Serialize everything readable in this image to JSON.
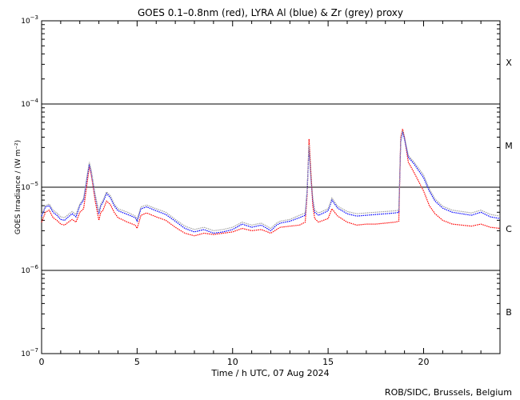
{
  "chart_data": {
    "type": "line",
    "title": "GOES 0.1–0.8nm (red), LYRA Al (blue) & Zr (grey) proxy",
    "xlabel": "Time / h UTC, 07 Aug 2024",
    "ylabel": "GOES Irradiance / (W m⁻²)",
    "xlim": [
      0,
      24
    ],
    "ylim": [
      1e-07,
      0.001
    ],
    "yscale": "log",
    "x_ticks": [
      0,
      5,
      10,
      15,
      20
    ],
    "x_tick_labels": [
      "0",
      "5",
      "10",
      "15",
      "20"
    ],
    "y_tick_labels": [
      {
        "base": "10",
        "exp": "−7"
      },
      {
        "base": "10",
        "exp": "−6"
      },
      {
        "base": "10",
        "exp": "−5"
      },
      {
        "base": "10",
        "exp": "−4"
      },
      {
        "base": "10",
        "exp": "−3"
      }
    ],
    "flare_classes": [
      "X",
      "M",
      "C",
      "B"
    ],
    "class_lines": [
      1e-06,
      1e-05,
      0.0001
    ],
    "credit": "ROB/SIDC, Brussels, Belgium",
    "series": [
      {
        "color": "#ff0000",
        "x": [
          0,
          0.2,
          0.4,
          0.6,
          0.8,
          1.0,
          1.2,
          1.4,
          1.6,
          1.8,
          2.0,
          2.2,
          2.4,
          2.5,
          2.6,
          2.7,
          2.8,
          3.0,
          3.1,
          3.2,
          3.4,
          3.6,
          3.8,
          4.0,
          4.2,
          4.5,
          4.9,
          5.0,
          5.2,
          5.5,
          6.0,
          6.5,
          7.0,
          7.5,
          8.0,
          8.5,
          9.0,
          9.5,
          10.0,
          10.5,
          11.0,
          11.5,
          12.0,
          12.3,
          12.5,
          13.0,
          13.5,
          13.8,
          13.9,
          14.0,
          14.1,
          14.2,
          14.3,
          14.5,
          15.0,
          15.2,
          15.5,
          16.0,
          16.5,
          17.0,
          17.5,
          18.0,
          18.5,
          18.7,
          18.8,
          18.9,
          19.0,
          19.2,
          19.5,
          20.0,
          20.3,
          20.6,
          21.0,
          21.5,
          22.0,
          22.5,
          23.0,
          23.5,
          24.0
        ],
        "y": [
          3.8e-06,
          5e-06,
          5.3e-06,
          4.3e-06,
          4e-06,
          3.6e-06,
          3.5e-06,
          3.8e-06,
          4.1e-06,
          3.8e-06,
          5e-06,
          5.5e-06,
          1.2e-05,
          1.8e-05,
          1.4e-05,
          1e-05,
          7e-06,
          4e-06,
          5e-06,
          5.2e-06,
          6.8e-06,
          6.2e-06,
          5e-06,
          4.3e-06,
          4.1e-06,
          3.8e-06,
          3.5e-06,
          3.2e-06,
          4.6e-06,
          4.9e-06,
          4.4e-06,
          4e-06,
          3.3e-06,
          2.8e-06,
          2.6e-06,
          2.8e-06,
          2.7e-06,
          2.8e-06,
          2.9e-06,
          3.2e-06,
          3e-06,
          3.1e-06,
          2.8e-06,
          3.1e-06,
          3.3e-06,
          3.4e-06,
          3.5e-06,
          3.8e-06,
          8e-06,
          3.8e-05,
          1.5e-05,
          6e-06,
          4.2e-06,
          3.8e-06,
          4.2e-06,
          5.5e-06,
          4.5e-06,
          3.8e-06,
          3.5e-06,
          3.6e-06,
          3.6e-06,
          3.7e-06,
          3.8e-06,
          3.9e-06,
          4e-05,
          5e-05,
          4e-05,
          2e-05,
          1.5e-05,
          9e-06,
          6e-06,
          4.8e-06,
          4e-06,
          3.6e-06,
          3.5e-06,
          3.4e-06,
          3.6e-06,
          3.3e-06,
          3.2e-06
        ]
      },
      {
        "color": "#0000ff",
        "x": [
          0,
          0.2,
          0.4,
          0.6,
          0.8,
          1.0,
          1.2,
          1.4,
          1.6,
          1.8,
          2.0,
          2.2,
          2.4,
          2.5,
          2.6,
          2.7,
          2.8,
          3.0,
          3.1,
          3.2,
          3.4,
          3.6,
          3.8,
          4.0,
          4.2,
          4.5,
          4.9,
          5.0,
          5.2,
          5.5,
          6.0,
          6.5,
          7.0,
          7.5,
          8.0,
          8.5,
          9.0,
          9.5,
          10.0,
          10.5,
          11.0,
          11.5,
          12.0,
          12.3,
          12.5,
          13.0,
          13.5,
          13.8,
          13.9,
          14.0,
          14.1,
          14.2,
          14.3,
          14.5,
          15.0,
          15.2,
          15.5,
          16.0,
          16.5,
          17.0,
          17.5,
          18.0,
          18.5,
          18.7,
          18.8,
          18.9,
          19.0,
          19.2,
          19.5,
          20.0,
          20.3,
          20.6,
          21.0,
          21.5,
          22.0,
          22.5,
          23.0,
          23.5,
          24.0
        ],
        "y": [
          4.5e-06,
          5.8e-06,
          6e-06,
          5e-06,
          4.6e-06,
          4.1e-06,
          4e-06,
          4.4e-06,
          4.8e-06,
          4.4e-06,
          6e-06,
          7e-06,
          1.4e-05,
          1.9e-05,
          1.5e-05,
          1.1e-05,
          8e-06,
          4.8e-06,
          6e-06,
          6.5e-06,
          8.4e-06,
          7.5e-06,
          6e-06,
          5.2e-06,
          5e-06,
          4.7e-06,
          4.3e-06,
          3.9e-06,
          5.5e-06,
          5.8e-06,
          5.2e-06,
          4.7e-06,
          3.9e-06,
          3.2e-06,
          2.9e-06,
          3.1e-06,
          2.8e-06,
          2.9e-06,
          3.1e-06,
          3.6e-06,
          3.3e-06,
          3.5e-06,
          3e-06,
          3.5e-06,
          3.7e-06,
          3.9e-06,
          4.3e-06,
          4.6e-06,
          9e-06,
          3e-05,
          1.3e-05,
          7e-06,
          5e-06,
          4.6e-06,
          5.2e-06,
          7e-06,
          5.6e-06,
          4.8e-06,
          4.5e-06,
          4.6e-06,
          4.7e-06,
          4.8e-06,
          4.9e-06,
          5e-06,
          3.5e-05,
          4.6e-05,
          3.8e-05,
          2.3e-05,
          1.9e-05,
          1.3e-05,
          9e-06,
          6.8e-06,
          5.6e-06,
          5e-06,
          4.8e-06,
          4.6e-06,
          5e-06,
          4.4e-06,
          4.2e-06
        ]
      },
      {
        "color": "#a0a0a0",
        "x": [
          0,
          0.2,
          0.4,
          0.6,
          0.8,
          1.0,
          1.2,
          1.4,
          1.6,
          1.8,
          2.0,
          2.2,
          2.4,
          2.5,
          2.6,
          2.7,
          2.8,
          3.0,
          3.1,
          3.2,
          3.4,
          3.6,
          3.8,
          4.0,
          4.2,
          4.5,
          4.9,
          5.0,
          5.2,
          5.5,
          6.0,
          6.5,
          7.0,
          7.5,
          8.0,
          8.5,
          9.0,
          9.5,
          10.0,
          10.5,
          11.0,
          11.5,
          12.0,
          12.3,
          12.5,
          13.0,
          13.5,
          13.8,
          13.9,
          14.0,
          14.1,
          14.2,
          14.3,
          14.5,
          15.0,
          15.2,
          15.5,
          16.0,
          16.5,
          17.0,
          17.5,
          18.0,
          18.5,
          18.7,
          18.8,
          18.9,
          19.0,
          19.2,
          19.5,
          20.0,
          20.3,
          20.6,
          21.0,
          21.5,
          22.0,
          22.5,
          23.0,
          23.5,
          24.0
        ],
        "y": [
          4.7e-06,
          6e-06,
          6.3e-06,
          5.3e-06,
          4.9e-06,
          4.4e-06,
          4.3e-06,
          4.7e-06,
          5.1e-06,
          4.7e-06,
          6.3e-06,
          7.3e-06,
          1.45e-05,
          2e-05,
          1.6e-05,
          1.15e-05,
          8.4e-06,
          5e-06,
          6.3e-06,
          6.8e-06,
          8.8e-06,
          7.9e-06,
          6.3e-06,
          5.5e-06,
          5.3e-06,
          5e-06,
          4.5e-06,
          4.1e-06,
          5.8e-06,
          6.1e-06,
          5.5e-06,
          5e-06,
          4.1e-06,
          3.4e-06,
          3.1e-06,
          3.3e-06,
          3e-06,
          3.1e-06,
          3.3e-06,
          3.8e-06,
          3.5e-06,
          3.7e-06,
          3.2e-06,
          3.7e-06,
          3.9e-06,
          4.1e-06,
          4.6e-06,
          4.9e-06,
          9.5e-06,
          3.2e-05,
          1.4e-05,
          7.4e-06,
          5.3e-06,
          4.9e-06,
          5.5e-06,
          7.4e-06,
          5.9e-06,
          5.1e-06,
          4.8e-06,
          4.9e-06,
          5e-06,
          5.1e-06,
          5.2e-06,
          5.3e-06,
          3.7e-05,
          4.8e-05,
          4e-05,
          2.4e-05,
          2e-05,
          1.4e-05,
          9.5e-06,
          7.2e-06,
          5.9e-06,
          5.3e-06,
          5.1e-06,
          4.9e-06,
          5.3e-06,
          4.7e-06,
          4.5e-06
        ]
      }
    ]
  }
}
